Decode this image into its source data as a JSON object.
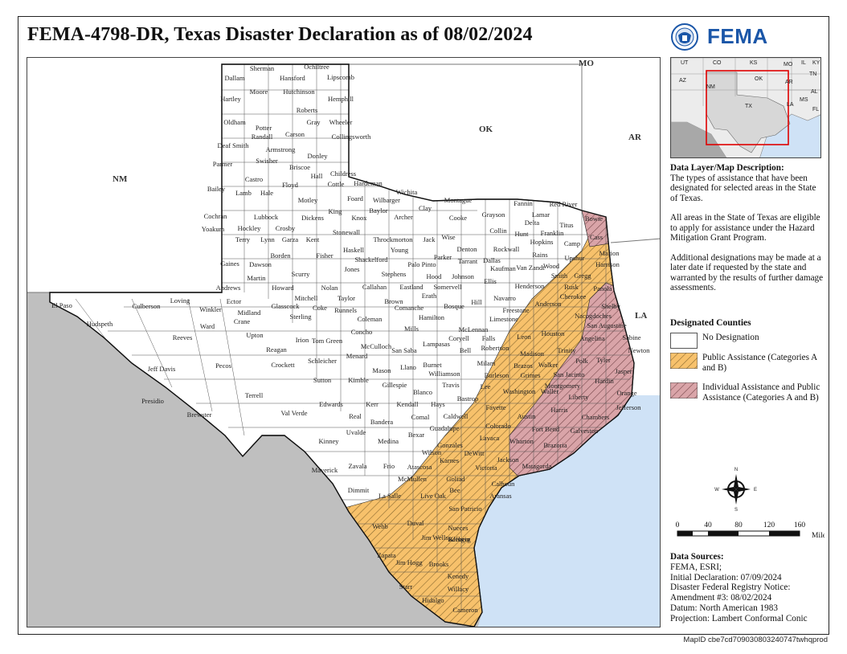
{
  "title": "FEMA-4798-DR, Texas Disaster Declaration as of 08/02/2024",
  "logo": {
    "word": "FEMA",
    "color": "#1a56a8"
  },
  "map": {
    "neighbor_labels": [
      "NM",
      "OK",
      "AR",
      "LA",
      "MO"
    ],
    "colors": {
      "land_tx": "#ffffff",
      "outside": "#bfbfbf",
      "water": "#cfe2f6",
      "public_assistance": "#f7c16b",
      "individual_assistance": "#d9a4a8",
      "hatch": "#8a6a30"
    },
    "counties": [
      "Sherman",
      "Ochiltree",
      "Dallam",
      "Hansford",
      "Lipscomb",
      "Hartley",
      "Moore",
      "Hutchinson",
      "Hemphill",
      "Roberts",
      "Oldham",
      "Potter",
      "Carson",
      "Gray",
      "Wheeler",
      "Randall",
      "Collingsworth",
      "Deaf Smith",
      "Armstrong",
      "Donley",
      "Parmer",
      "Swisher",
      "Briscoe",
      "Castro",
      "Hall",
      "Childress",
      "Bailey",
      "Lamb",
      "Hale",
      "Floyd",
      "Cottle",
      "Hardeman",
      "Motley",
      "Foard",
      "Wilbarger",
      "Wichita",
      "Montague",
      "Fannin",
      "Red River",
      "Cochran",
      "Lubbock",
      "Dickens",
      "King",
      "Knox",
      "Baylor",
      "Archer",
      "Clay",
      "Cooke",
      "Grayson",
      "Lamar",
      "Delta",
      "Titus",
      "Bowie",
      "Yoakum",
      "Hockley",
      "Crosby",
      "Stonewall",
      "Throckmorton",
      "Jack",
      "Wise",
      "Denton",
      "Collin",
      "Hunt",
      "Franklin",
      "Camp",
      "Cass",
      "Terry",
      "Lynn",
      "Garza",
      "Kent",
      "Haskell",
      "Young",
      "Palo Pinto",
      "Parker",
      "Tarrant",
      "Dallas",
      "Rockwall",
      "Kaufman",
      "Hopkins",
      "Rains",
      "Wood",
      "Upshur",
      "Marion",
      "Harrison",
      "Gaines",
      "Dawson",
      "Borden",
      "Scurry",
      "Fisher",
      "Jones",
      "Shackelford",
      "Stephens",
      "Hood",
      "Johnson",
      "Ellis",
      "Van Zandt",
      "Smith",
      "Gregg",
      "Panola",
      "Martin",
      "Howard",
      "Mitchell",
      "Nolan",
      "Taylor",
      "Callahan",
      "Eastland",
      "Erath",
      "Somervell",
      "Hill",
      "Navarro",
      "Henderson",
      "Rusk",
      "Cherokee",
      "Shelby",
      "Andrews",
      "Ector",
      "Midland",
      "Glasscock",
      "Sterling",
      "Coke",
      "Runnels",
      "Coleman",
      "Brown",
      "Comanche",
      "Hamilton",
      "Bosque",
      "McLennan",
      "Limestone",
      "Freestone",
      "Anderson",
      "Nacogdoches",
      "San Augustine",
      "Sabine",
      "Newton",
      "El Paso",
      "Culberson",
      "Loving",
      "Winkler",
      "Crane",
      "Ward",
      "Upton",
      "Reagan",
      "Irion",
      "Tom Green",
      "Concho",
      "McCulloch",
      "Mills",
      "Coryell",
      "Falls",
      "Leon",
      "Houston",
      "Angelina",
      "Jasper",
      "Hudspeth",
      "Reeves",
      "Pecos",
      "Crockett",
      "Schleicher",
      "Menard",
      "Mason",
      "San Saba",
      "Lampasas",
      "Bell",
      "Robertson",
      "Madison",
      "Trinity",
      "Polk",
      "Tyler",
      "Jeff Davis",
      "Terrell",
      "Sutton",
      "Kimble",
      "Llano",
      "Burnet",
      "Williamson",
      "Milam",
      "Brazos",
      "Grimes",
      "Walker",
      "San Jacinto",
      "Montgomery",
      "Hardin",
      "Orange",
      "Liberty",
      "Jefferson",
      "Chambers",
      "Presidio",
      "Brewster",
      "Val Verde",
      "Edwards",
      "Kerr",
      "Gillespie",
      "Blanco",
      "Travis",
      "Bastrop",
      "Lee",
      "Burleson",
      "Washington",
      "Waller",
      "Harris",
      "Galveston",
      "Kendall",
      "Hays",
      "Caldwell",
      "Fayette",
      "Austin",
      "Fort Bend",
      "Real",
      "Bandera",
      "Comal",
      "Guadalupe",
      "Colorado",
      "Wharton",
      "Brazoria",
      "Kinney",
      "Uvalde",
      "Medina",
      "Bexar",
      "Gonzales",
      "Lavaca",
      "Jackson",
      "Matagorda",
      "Wilson",
      "DeWitt",
      "Karnes",
      "Victoria",
      "Calhoun",
      "Maverick",
      "Zavala",
      "Frio",
      "Atascosa",
      "McMullen",
      "Goliad",
      "Refugio",
      "Aransas",
      "Dimmit",
      "La Salle",
      "Live Oak",
      "Bee",
      "San Patricio",
      "Webb",
      "Duval",
      "Jim Wells",
      "Nueces",
      "Kleberg",
      "Zapata",
      "Jim Hogg",
      "Brooks",
      "Kenedy",
      "Starr",
      "Willacy",
      "Hidalgo",
      "Cameron"
    ]
  },
  "inset": {
    "labels": [
      "UT",
      "CO",
      "KS",
      "MO",
      "IL",
      "KY",
      "AZ",
      "NM",
      "OK",
      "AR",
      "TN",
      "TX",
      "AL",
      "MS",
      "LA",
      "FL"
    ]
  },
  "description": {
    "heading": "Data Layer/Map Description:",
    "p1": "The types of assistance that have been designated for selected areas in the State of Texas.",
    "p2": "All areas in the State of Texas are eligible to apply for assistance under the Hazard Mitigation Grant Program.",
    "p3": "Additional designations may be made at a later date if requested by the state and warranted by the results of further damage assessments."
  },
  "legend": {
    "title": "Designated Counties",
    "items": [
      {
        "label": "No Designation",
        "color": "#ffffff"
      },
      {
        "label": "Public Assistance (Categories A and B)",
        "color": "#f7c16b"
      },
      {
        "label": "Individual Assistance and Public Assistance (Categories A and B)",
        "color": "#d9a4a8"
      }
    ]
  },
  "compass": {
    "n": "N",
    "s": "S",
    "e": "E",
    "w": "W"
  },
  "scale": {
    "ticks": [
      "0",
      "40",
      "80",
      "120",
      "160"
    ],
    "unit": "Miles"
  },
  "sources": {
    "heading": "Data Sources:",
    "lines": [
      "FEMA, ESRI;",
      "Initial Declaration: 07/09/2024",
      "Disaster Federal Registry Notice:",
      "Amendment #3: 08/02/2024",
      "Datum: North American 1983",
      "Projection: Lambert Conformal Conic"
    ]
  },
  "map_id": "MapID cbe7cd709030803240747twhqprod"
}
